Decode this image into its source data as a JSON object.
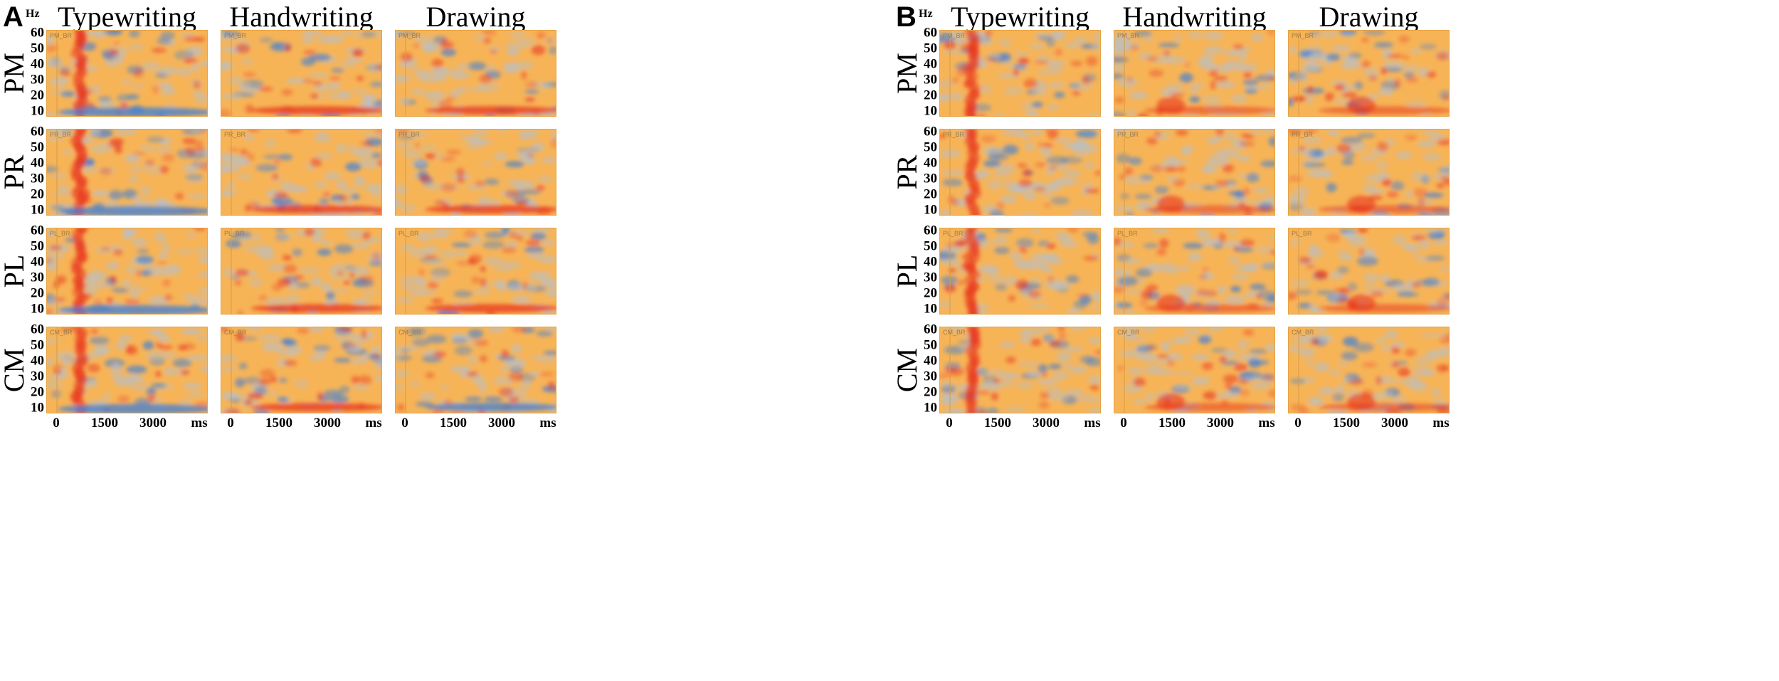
{
  "panels": [
    {
      "letter": "A",
      "unit_label": "Hz",
      "columns": [
        "Typewriting",
        "Handwriting",
        "Drawing"
      ],
      "rows": [
        {
          "label": "PM",
          "tag": "PM_BR"
        },
        {
          "label": "PR",
          "tag": "PR_BR"
        },
        {
          "label": "PL",
          "tag": "PL_BR"
        },
        {
          "label": "CM",
          "tag": "CM_BR"
        }
      ],
      "y_ticks": [
        "60",
        "50",
        "40",
        "30",
        "20",
        "10"
      ],
      "x_ticks": [
        "0",
        "1500",
        "3000",
        "ms"
      ]
    },
    {
      "letter": "B",
      "unit_label": "Hz",
      "columns": [
        "Typewriting",
        "Handwriting",
        "Drawing"
      ],
      "rows": [
        {
          "label": "PM",
          "tag": "PM_BR"
        },
        {
          "label": "PR",
          "tag": "PR_BR"
        },
        {
          "label": "PL",
          "tag": "PL_BR"
        },
        {
          "label": "CM",
          "tag": "CM_BR"
        }
      ],
      "y_ticks": [
        "60",
        "50",
        "40",
        "30",
        "20",
        "10"
      ],
      "x_ticks": [
        "0",
        "1500",
        "3000",
        "ms"
      ]
    }
  ],
  "colors": {
    "background_orange": "#f7b457",
    "synchronization_red": "#e8341c",
    "desynchronization_blue": "#3f7fd6",
    "neutral_grey": "#b9bfc6"
  }
}
